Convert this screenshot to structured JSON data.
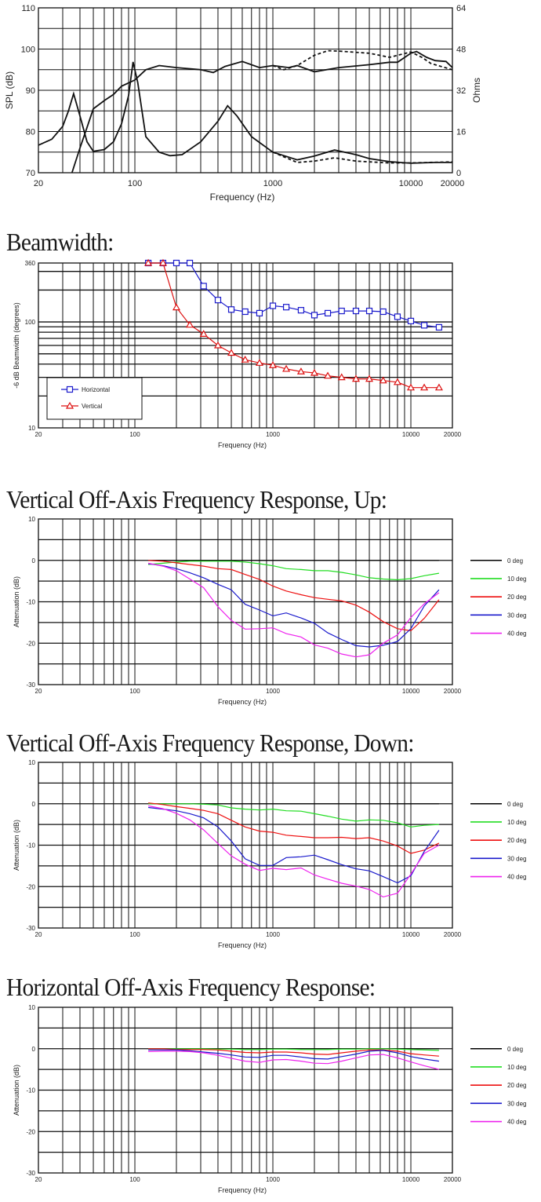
{
  "chart_data": [
    {
      "type": "line",
      "title": "",
      "xlabel": "Frequency (Hz)",
      "ylabel": "SPL (dB)",
      "y2label": "Ohms",
      "xscale": "log",
      "xlim": [
        20,
        20000
      ],
      "ylim": [
        70,
        110
      ],
      "y2lim": [
        0,
        64
      ],
      "xticks": [
        "20",
        "100",
        "1000",
        "10000",
        "20000"
      ],
      "yticks": [
        "70",
        "80",
        "90",
        "100",
        "110"
      ],
      "y2ticks": [
        "0",
        "16",
        "32",
        "48",
        "64"
      ],
      "grid": true,
      "series": [
        {
          "axis": "left",
          "style": "solid",
          "color": "#111111",
          "x": [
            35,
            40,
            45,
            50,
            60,
            70,
            80,
            100,
            120,
            150,
            200,
            300,
            370,
            450,
            600,
            800,
            1000,
            1300,
            1500,
            2000,
            3000,
            5000,
            7000,
            8000,
            10000,
            11000,
            13000,
            15000,
            18000,
            20000
          ],
          "y": [
            70,
            76,
            81,
            85.5,
            87.5,
            89,
            91,
            92.5,
            95,
            96,
            95.5,
            95,
            94.3,
            95.8,
            97,
            95.5,
            96,
            95.5,
            96,
            94.5,
            95.5,
            96.2,
            96.8,
            96.8,
            99,
            99.4,
            98,
            97.2,
            97,
            95.5
          ]
        },
        {
          "axis": "left",
          "style": "dashed",
          "color": "#111111",
          "x": [
            1000,
            1200,
            1500,
            2000,
            2500,
            3000,
            5000,
            7000,
            10000,
            12000,
            14000,
            20000
          ],
          "y": [
            96,
            95,
            96,
            98.5,
            99.6,
            99.5,
            99,
            98,
            99.3,
            98,
            96.5,
            95
          ]
        },
        {
          "axis": "right",
          "style": "solid",
          "color": "#111111",
          "x": [
            20,
            25,
            30,
            33,
            36,
            40,
            45,
            50,
            60,
            70,
            80,
            90,
            97,
            105,
            120,
            150,
            180,
            220,
            300,
            400,
            470,
            550,
            700,
            1000,
            1500,
            2000,
            2800,
            4000,
            5000,
            7000,
            10000,
            15000,
            20000
          ],
          "y": [
            10.7,
            13,
            18,
            24,
            30.7,
            22,
            12,
            8.3,
            9,
            12,
            19,
            30,
            43,
            35,
            14,
            8,
            6.6,
            7,
            12,
            20,
            26,
            22,
            14,
            8,
            5,
            6.5,
            8.8,
            7,
            5.5,
            4.3,
            3.7,
            4,
            4
          ]
        },
        {
          "axis": "right",
          "style": "dashed",
          "color": "#111111",
          "x": [
            1000,
            1500,
            2000,
            2800,
            4000,
            7000,
            10000,
            20000
          ],
          "y": [
            8,
            4,
            4.5,
            5.8,
            4.5,
            3.8,
            3.8,
            4.2
          ]
        }
      ]
    },
    {
      "type": "line",
      "title": "Beamwidth:",
      "xlabel": "Frequency (Hz)",
      "ylabel": "-6 dB Beamwidth (degrees)",
      "xscale": "log",
      "yscale": "log",
      "xlim": [
        20,
        20000
      ],
      "ylim": [
        10,
        360
      ],
      "xticks": [
        "20",
        "100",
        "1000",
        "10000",
        "20000"
      ],
      "yticks": [
        "10",
        "100",
        "360"
      ],
      "grid": true,
      "legend": {
        "position": "bottom-left"
      },
      "x": [
        125,
        160,
        200,
        250,
        315,
        400,
        500,
        630,
        800,
        1000,
        1250,
        1600,
        2000,
        2500,
        3150,
        4000,
        5000,
        6300,
        8000,
        10000,
        12500,
        16000
      ],
      "series": [
        {
          "name": "Horizontal",
          "color": "#1a1acc",
          "marker": "square",
          "values": [
            360,
            360,
            360,
            360,
            218,
            161,
            131,
            125,
            121,
            142,
            138,
            129,
            116,
            121,
            127,
            127,
            127,
            125,
            112,
            102,
            93,
            89
          ]
        },
        {
          "name": "Vertical",
          "color": "#dd1111",
          "marker": "triangle",
          "values": [
            360,
            360,
            137,
            94,
            77,
            60,
            51,
            44,
            41,
            39,
            36,
            34,
            33,
            31,
            30,
            29,
            29,
            28,
            27,
            24,
            24,
            24
          ]
        }
      ]
    },
    {
      "type": "line",
      "title": "Vertical Off-Axis Frequency Response, Up:",
      "xlabel": "Frequency (Hz)",
      "ylabel": "Attenuation (dB)",
      "xscale": "log",
      "xlim": [
        20,
        20000
      ],
      "ylim": [
        -30,
        10
      ],
      "xticks": [
        "20",
        "100",
        "1000",
        "10000",
        "20000"
      ],
      "yticks": [
        "-30",
        "-20",
        "-10",
        "0",
        "10"
      ],
      "grid": true,
      "legend": {
        "position": "right"
      },
      "x": [
        125,
        160,
        200,
        250,
        315,
        400,
        500,
        630,
        800,
        1000,
        1250,
        1600,
        2000,
        2500,
        3150,
        4000,
        5000,
        6300,
        8000,
        10000,
        12500,
        16000
      ],
      "series": [
        {
          "name": "0 deg",
          "color": "#000000",
          "values": [
            0,
            0,
            0,
            0,
            0,
            0,
            0,
            0,
            0,
            0,
            0,
            0,
            0,
            0,
            0,
            0,
            0,
            0,
            0,
            0,
            0,
            0
          ]
        },
        {
          "name": "10 deg",
          "color": "#22dd22",
          "values": [
            -1,
            -0.7,
            -0.4,
            -0.2,
            -0.2,
            -0.2,
            -0.2,
            -0.4,
            -0.8,
            -1.3,
            -2,
            -2.2,
            -2.5,
            -2.5,
            -2.9,
            -3.5,
            -4.2,
            -4.5,
            -4.7,
            -4.4,
            -3.7,
            -3.1
          ]
        },
        {
          "name": "20 deg",
          "color": "#ee1111",
          "values": [
            0,
            -0.2,
            -0.6,
            -1,
            -1.4,
            -2,
            -2.2,
            -3.4,
            -4.6,
            -6.2,
            -7.4,
            -8.3,
            -9,
            -9.4,
            -9.8,
            -10.8,
            -12.5,
            -14.8,
            -16.5,
            -17,
            -14,
            -9.5
          ]
        },
        {
          "name": "30 deg",
          "color": "#1a1acc",
          "values": [
            -0.8,
            -1.3,
            -2,
            -3,
            -4.2,
            -5.8,
            -7.1,
            -10.6,
            -12,
            -13.4,
            -12.7,
            -13.9,
            -15.2,
            -17.5,
            -19.1,
            -20.6,
            -20.9,
            -20.5,
            -19.6,
            -16.5,
            -11,
            -7.1
          ]
        },
        {
          "name": "40 deg",
          "color": "#ee22ee",
          "values": [
            -0.7,
            -1.4,
            -2.5,
            -4.5,
            -6.6,
            -11.2,
            -14.5,
            -16.6,
            -16.5,
            -16.3,
            -17.7,
            -18.5,
            -20.4,
            -21.2,
            -22.6,
            -23.3,
            -22.8,
            -20,
            -18,
            -13.8,
            -10.5,
            -7.8
          ]
        }
      ]
    },
    {
      "type": "line",
      "title": "Vertical Off-Axis Frequency Response, Down:",
      "xlabel": "Frequency (Hz)",
      "ylabel": "Attenuation (dB)",
      "xscale": "log",
      "xlim": [
        20,
        20000
      ],
      "ylim": [
        -30,
        10
      ],
      "xticks": [
        "20",
        "100",
        "1000",
        "10000",
        "20000"
      ],
      "yticks": [
        "-30",
        "-20",
        "-10",
        "0",
        "10"
      ],
      "grid": true,
      "legend": {
        "position": "right"
      },
      "x": [
        125,
        160,
        200,
        250,
        315,
        400,
        500,
        630,
        800,
        1000,
        1250,
        1600,
        2000,
        2500,
        3150,
        4000,
        5000,
        6300,
        8000,
        10000,
        12500,
        16000
      ],
      "series": [
        {
          "name": "0 deg",
          "color": "#000000",
          "values": [
            0,
            0,
            0,
            0,
            0,
            0,
            0,
            0,
            0,
            0,
            0,
            0,
            0,
            0,
            0,
            0,
            0,
            0,
            0,
            0,
            0,
            0
          ]
        },
        {
          "name": "10 deg",
          "color": "#22dd22",
          "values": [
            0,
            0,
            0,
            0,
            -0.1,
            -0.3,
            -1,
            -1.3,
            -1.5,
            -1.3,
            -1.7,
            -1.8,
            -2.4,
            -3,
            -3.7,
            -4.2,
            -3.9,
            -4,
            -4.6,
            -5.6,
            -5.2,
            -5
          ]
        },
        {
          "name": "20 deg",
          "color": "#ee1111",
          "values": [
            0.2,
            -0.2,
            -0.7,
            -1.1,
            -1.6,
            -2.4,
            -4,
            -5.6,
            -6.6,
            -6.9,
            -7.6,
            -7.9,
            -8.2,
            -8.2,
            -8.1,
            -8.4,
            -8.2,
            -9,
            -10.2,
            -12,
            -11.2,
            -9.5
          ]
        },
        {
          "name": "30 deg",
          "color": "#1a1acc",
          "values": [
            -0.9,
            -1.3,
            -1.7,
            -2.4,
            -3.4,
            -5.6,
            -9,
            -13.3,
            -14.9,
            -14.9,
            -13,
            -12.8,
            -12.4,
            -13.5,
            -14.7,
            -15.7,
            -16.2,
            -17.6,
            -19.1,
            -17.4,
            -11.5,
            -6.4
          ]
        },
        {
          "name": "40 deg",
          "color": "#ee22ee",
          "values": [
            -0.5,
            -1.2,
            -2.3,
            -3.9,
            -6.3,
            -9.6,
            -12.6,
            -14.6,
            -16.1,
            -15.6,
            -15.9,
            -15.5,
            -17.2,
            -18.2,
            -19.2,
            -19.9,
            -20.7,
            -22.5,
            -21.6,
            -17,
            -12,
            -10
          ]
        }
      ]
    },
    {
      "type": "line",
      "title": "Horizontal Off-Axis Frequency Response:",
      "xlabel": "Frequency (Hz)",
      "ylabel": "Attenuation (dB)",
      "xscale": "log",
      "xlim": [
        20,
        20000
      ],
      "ylim": [
        -30,
        10
      ],
      "xticks": [
        "20",
        "100",
        "1000",
        "10000",
        "20000"
      ],
      "yticks": [
        "-30",
        "-20",
        "-10",
        "0",
        "10"
      ],
      "grid": true,
      "legend": {
        "position": "right"
      },
      "x": [
        125,
        160,
        200,
        250,
        315,
        400,
        500,
        630,
        800,
        1000,
        1250,
        1600,
        2000,
        2500,
        3150,
        4000,
        5000,
        6300,
        8000,
        10000,
        12500,
        16000
      ],
      "series": [
        {
          "name": "0 deg",
          "color": "#000000",
          "values": [
            0,
            0,
            0,
            0,
            0,
            0,
            0,
            0,
            0,
            0,
            0,
            0,
            0,
            0,
            0,
            0,
            0,
            0,
            0,
            0,
            0,
            0
          ]
        },
        {
          "name": "10 deg",
          "color": "#22dd22",
          "values": [
            0,
            0,
            0,
            0,
            0,
            -0.1,
            -0.1,
            -0.2,
            -0.2,
            -0.1,
            -0.1,
            -0.2,
            -0.2,
            -0.2,
            -0.1,
            -0.1,
            0,
            0,
            -0.1,
            -0.2,
            -0.3,
            -0.4
          ]
        },
        {
          "name": "20 deg",
          "color": "#ee1111",
          "values": [
            0,
            0,
            -0.2,
            -0.2,
            -0.2,
            -0.3,
            -0.6,
            -0.9,
            -1,
            -0.8,
            -0.8,
            -1,
            -1.3,
            -1.4,
            -1,
            -0.6,
            -0.3,
            -0.3,
            -0.6,
            -1.2,
            -1.5,
            -1.8
          ]
        },
        {
          "name": "30 deg",
          "color": "#1a1acc",
          "values": [
            -0.3,
            -0.3,
            -0.3,
            -0.5,
            -0.8,
            -1.1,
            -1.5,
            -2,
            -2.1,
            -1.6,
            -1.6,
            -2,
            -2.4,
            -2.5,
            -1.9,
            -1.3,
            -0.6,
            -0.4,
            -1,
            -1.9,
            -2.5,
            -3
          ]
        },
        {
          "name": "40 deg",
          "color": "#ee22ee",
          "values": [
            -0.7,
            -0.6,
            -0.6,
            -0.7,
            -1,
            -1.6,
            -2.3,
            -3,
            -3.3,
            -2.7,
            -2.6,
            -3,
            -3.5,
            -3.6,
            -3,
            -2.2,
            -1.5,
            -1.4,
            -2.2,
            -3.2,
            -4.1,
            -5
          ]
        }
      ]
    }
  ]
}
